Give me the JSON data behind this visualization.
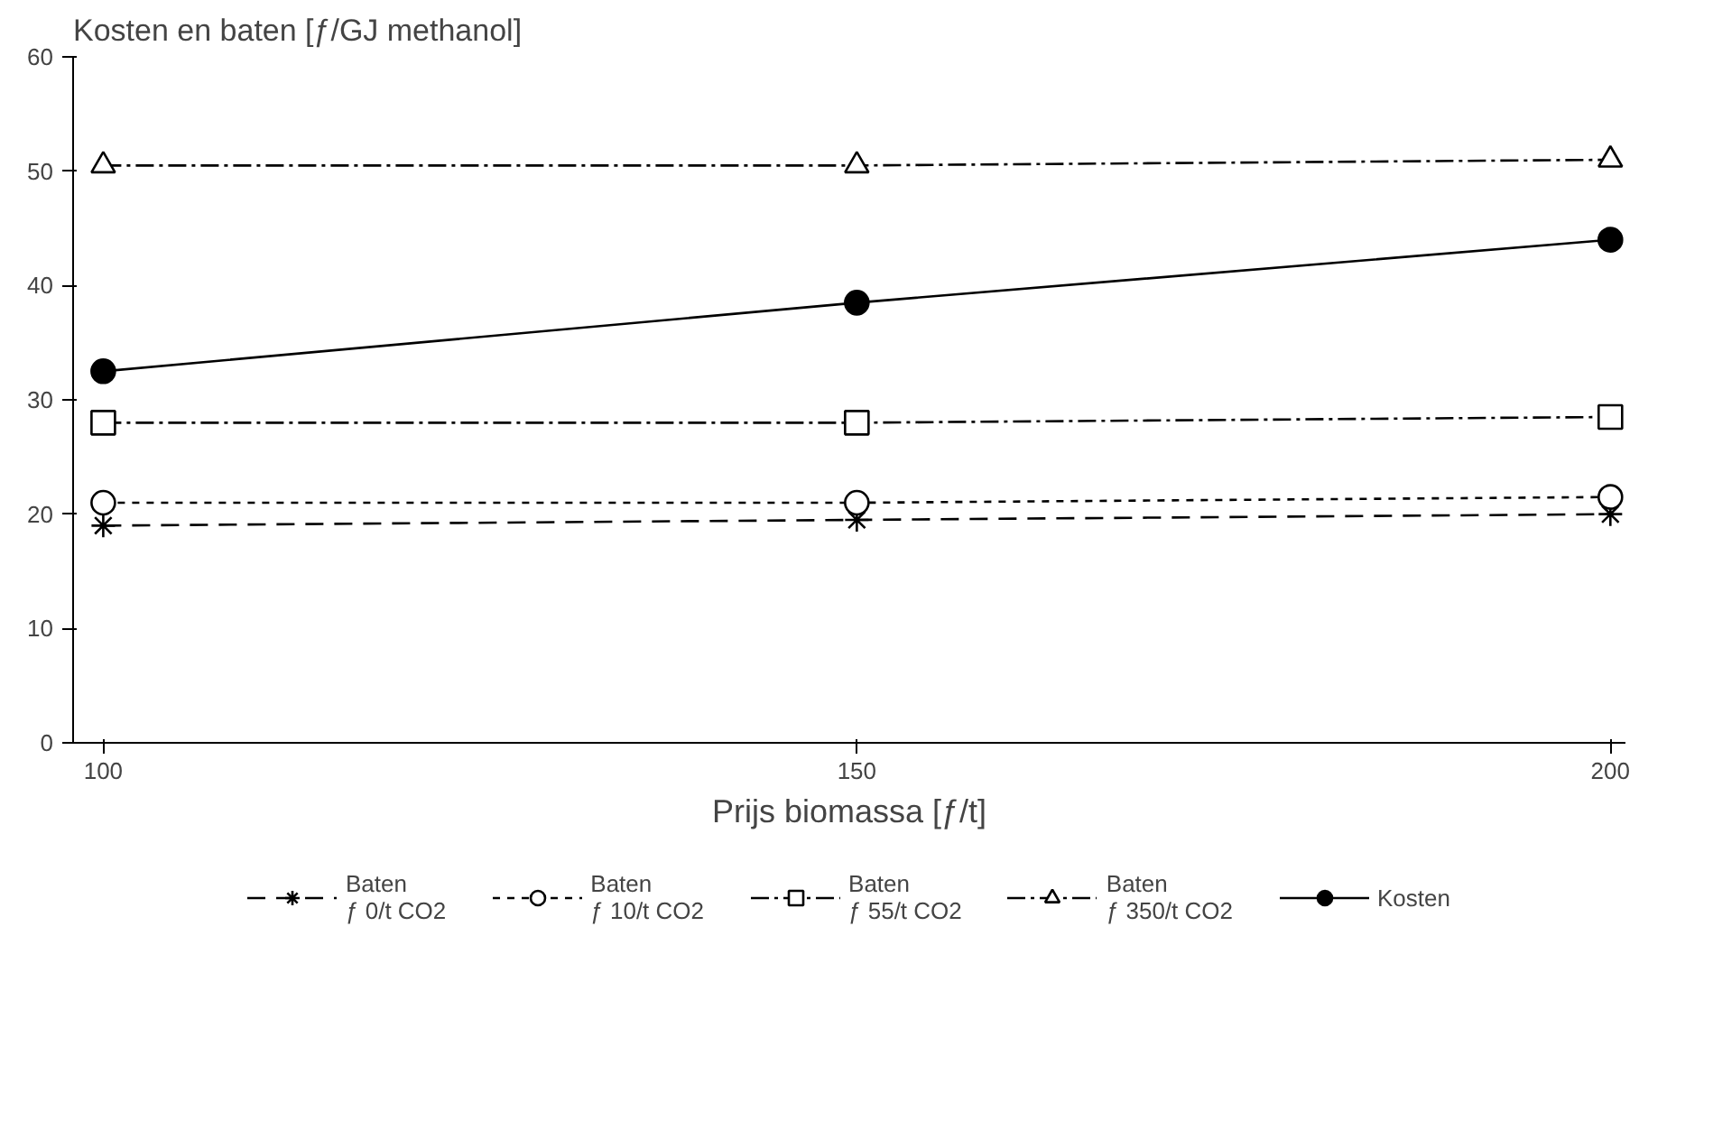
{
  "chart_data": {
    "type": "line",
    "ylabel": "Kosten en baten [ƒ/GJ methanol]",
    "xlabel": "Prijs biomassa [ƒ/t]",
    "x": [
      100,
      150,
      200
    ],
    "xlim": [
      98,
      201
    ],
    "xticks": [
      100,
      150,
      200
    ],
    "ylim": [
      0,
      60
    ],
    "yticks": [
      0,
      10,
      20,
      30,
      40,
      50,
      60
    ],
    "grid": false,
    "legend": "bottom",
    "series": [
      {
        "name": "Baten\nƒ 0/t CO2",
        "color": "#000000",
        "values": [
          19,
          19.5,
          20
        ],
        "marker": "cross",
        "line_style": "dashed"
      },
      {
        "name": "Baten\nƒ 10/t CO2",
        "color": "#000000",
        "values": [
          21,
          21,
          21.5
        ],
        "marker": "circle",
        "line_style": "dotted"
      },
      {
        "name": "Baten\nƒ 55/t CO2",
        "color": "#000000",
        "values": [
          28,
          28,
          28.5
        ],
        "marker": "square",
        "line_style": "dashdot"
      },
      {
        "name": "Baten\nƒ 350/t CO2",
        "color": "#000000",
        "values": [
          50.5,
          50.5,
          51
        ],
        "marker": "triangle",
        "line_style": "dashdot"
      },
      {
        "name": "Kosten",
        "color": "#000000",
        "values": [
          32.5,
          38.5,
          44
        ],
        "marker": "circle_filled",
        "line_style": "solid"
      }
    ]
  }
}
